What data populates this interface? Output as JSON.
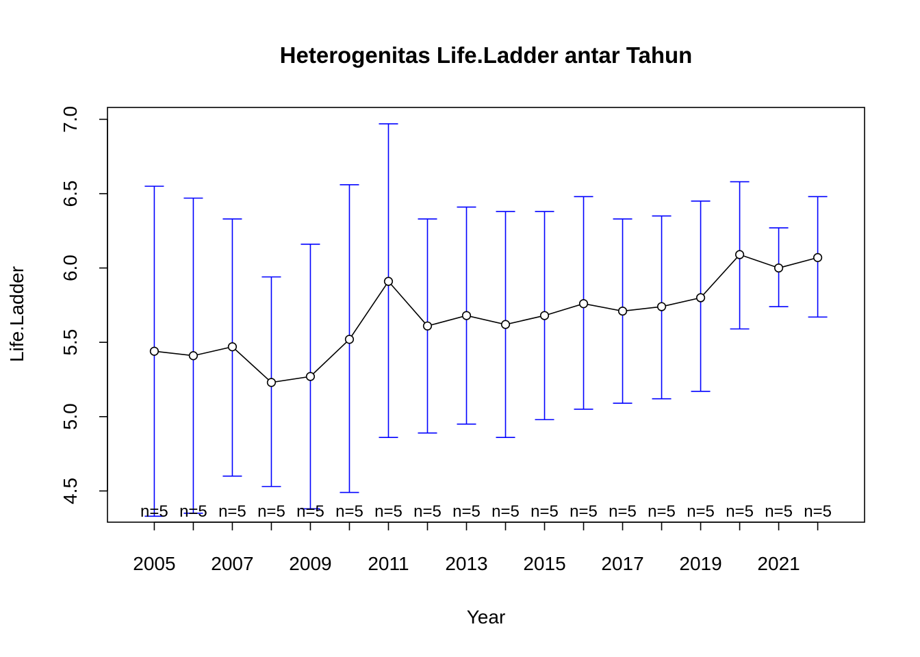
{
  "chart_data": {
    "type": "line",
    "title": "Heterogenitas Life.Ladder antar Tahun",
    "xlabel": "Year",
    "ylabel": "Life.Ladder",
    "x": [
      2005,
      2006,
      2007,
      2008,
      2009,
      2010,
      2011,
      2012,
      2013,
      2014,
      2015,
      2016,
      2017,
      2018,
      2019,
      2020,
      2021,
      2022
    ],
    "x_tick_labels": [
      "2005",
      "2007",
      "2009",
      "2011",
      "2013",
      "2015",
      "2017",
      "2019",
      "2021"
    ],
    "x_tick_values": [
      2005,
      2007,
      2009,
      2011,
      2013,
      2015,
      2017,
      2019,
      2021
    ],
    "y_tick_labels": [
      "4.5",
      "5.0",
      "5.5",
      "6.0",
      "6.5",
      "7.0"
    ],
    "y_tick_values": [
      4.5,
      5.0,
      5.5,
      6.0,
      6.5,
      7.0
    ],
    "xlim": [
      2003.8,
      2023.2
    ],
    "ylim": [
      4.29,
      7.08
    ],
    "series": [
      {
        "values": [
          5.44,
          5.41,
          5.47,
          5.23,
          5.27,
          5.52,
          5.91,
          5.61,
          5.68,
          5.62,
          5.68,
          5.76,
          5.71,
          5.74,
          5.8,
          6.09,
          6.0,
          6.07
        ],
        "ci_upper": [
          6.55,
          6.47,
          6.33,
          5.94,
          6.16,
          6.56,
          6.97,
          6.33,
          6.41,
          6.38,
          6.38,
          6.48,
          6.33,
          6.35,
          6.45,
          6.58,
          6.27,
          6.48
        ],
        "ci_lower": [
          4.33,
          4.35,
          4.6,
          4.53,
          4.38,
          4.49,
          4.86,
          4.89,
          4.95,
          4.86,
          4.98,
          5.05,
          5.09,
          5.12,
          5.17,
          5.59,
          5.74,
          5.67
        ],
        "n_labels": [
          "n=5",
          "n=5",
          "n=5",
          "n=5",
          "n=5",
          "n=5",
          "n=5",
          "n=5",
          "n=5",
          "n=5",
          "n=5",
          "n=5",
          "n=5",
          "n=5",
          "n=5",
          "n=5",
          "n=5",
          "n=5"
        ]
      }
    ],
    "grid": false,
    "colors": {
      "line": "#000000",
      "error_bars": "#0000ff",
      "points": "#000000"
    }
  }
}
